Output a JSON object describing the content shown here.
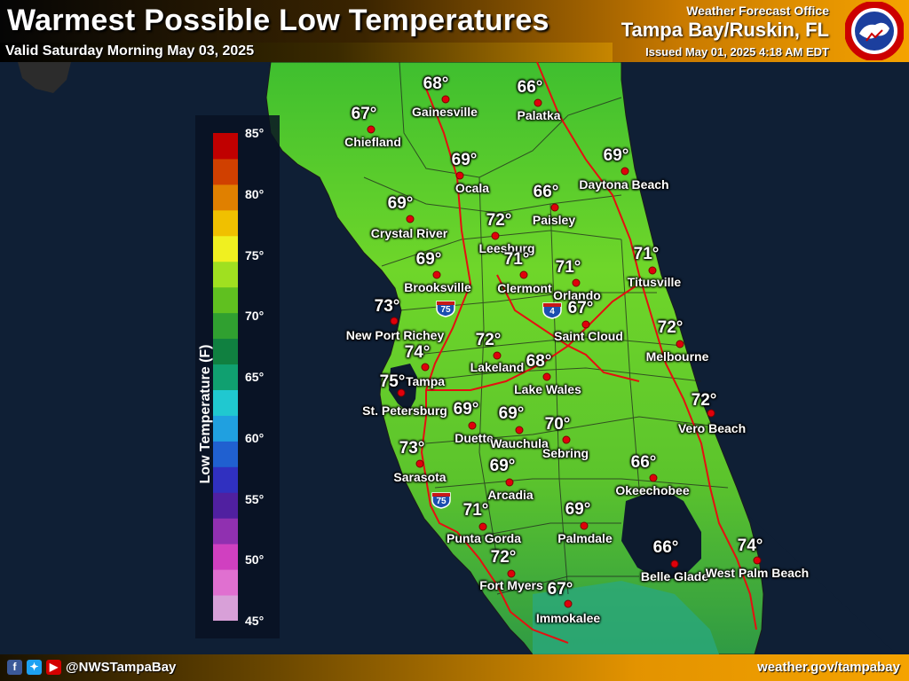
{
  "header": {
    "title": "Warmest Possible Low Temperatures",
    "valid": "Valid Saturday Morning May 03, 2025",
    "office_label": "Weather Forecast Office",
    "office_name": "Tampa Bay/Ruskin, FL",
    "issued": "Issued May 01, 2025 4:18 AM EDT",
    "logo_text": "NATIONAL WEATHER SERVICE"
  },
  "legend": {
    "axis_label": "Low Temperature (F)",
    "ticks": [
      "85°",
      "80°",
      "75°",
      "70°",
      "65°",
      "60°",
      "55°",
      "50°",
      "45°"
    ],
    "min": 45,
    "max": 85,
    "colors": [
      "#d8a0d8",
      "#e070d0",
      "#d040c0",
      "#9030b0",
      "#5020a0",
      "#3030c0",
      "#2060d0",
      "#20a0e0",
      "#20c8d0",
      "#10a070",
      "#108040",
      "#30a030",
      "#60c020",
      "#a0e020",
      "#f0f020",
      "#f0c000",
      "#e08000",
      "#d04000",
      "#c00000"
    ]
  },
  "roads": {
    "shields": [
      {
        "label": "75"
      },
      {
        "label": "4"
      },
      {
        "label": "75"
      }
    ]
  },
  "cities": [
    {
      "name": "Gainesville",
      "temp": "68°",
      "value": 68
    },
    {
      "name": "Palatka",
      "temp": "66°",
      "value": 66
    },
    {
      "name": "Chiefland",
      "temp": "67°",
      "value": 67
    },
    {
      "name": "Ocala",
      "temp": "69°",
      "value": 69
    },
    {
      "name": "Daytona Beach",
      "temp": "69°",
      "value": 69
    },
    {
      "name": "Paisley",
      "temp": "66°",
      "value": 66
    },
    {
      "name": "Crystal River",
      "temp": "69°",
      "value": 69
    },
    {
      "name": "Leesburg",
      "temp": "72°",
      "value": 72
    },
    {
      "name": "Brooksville",
      "temp": "69°",
      "value": 69
    },
    {
      "name": "Clermont",
      "temp": "71°",
      "value": 71
    },
    {
      "name": "Orlando",
      "temp": "71°",
      "value": 71
    },
    {
      "name": "Titusville",
      "temp": "71°",
      "value": 71
    },
    {
      "name": "New Port Richey",
      "temp": "73°",
      "value": 73
    },
    {
      "name": "Saint Cloud",
      "temp": "67°",
      "value": 67
    },
    {
      "name": "Tampa",
      "temp": "74°",
      "value": 74
    },
    {
      "name": "Lakeland",
      "temp": "72°",
      "value": 72
    },
    {
      "name": "Melbourne",
      "temp": "72°",
      "value": 72
    },
    {
      "name": "St. Petersburg",
      "temp": "75°",
      "value": 75
    },
    {
      "name": "Lake Wales",
      "temp": "68°",
      "value": 68
    },
    {
      "name": "Duette",
      "temp": "69°",
      "value": 69
    },
    {
      "name": "Wauchula",
      "temp": "69°",
      "value": 69
    },
    {
      "name": "Vero Beach",
      "temp": "72°",
      "value": 72
    },
    {
      "name": "Sebring",
      "temp": "70°",
      "value": 70
    },
    {
      "name": "Sarasota",
      "temp": "73°",
      "value": 73
    },
    {
      "name": "Arcadia",
      "temp": "69°",
      "value": 69
    },
    {
      "name": "Okeechobee",
      "temp": "66°",
      "value": 66
    },
    {
      "name": "Punta Gorda",
      "temp": "71°",
      "value": 71
    },
    {
      "name": "Palmdale",
      "temp": "69°",
      "value": 69
    },
    {
      "name": "Fort Myers",
      "temp": "72°",
      "value": 72
    },
    {
      "name": "Belle Glade",
      "temp": "66°",
      "value": 66
    },
    {
      "name": "West Palm Beach",
      "temp": "74°",
      "value": 74
    },
    {
      "name": "Immokalee",
      "temp": "67°",
      "value": 67
    }
  ],
  "footer": {
    "social_handle": "@NWSTampaBay",
    "url": "weather.gov/tampabay",
    "icons": [
      "facebook-icon",
      "twitter-icon",
      "youtube-icon"
    ]
  }
}
